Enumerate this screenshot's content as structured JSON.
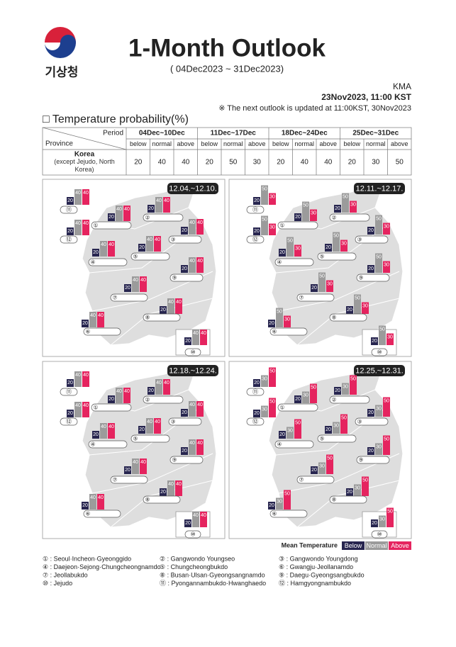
{
  "header": {
    "logo_text": "기상청",
    "title": "1-Month Outlook",
    "subtitle": "( 04Dec2023 ~ 31Dec2023)",
    "agency": "KMA",
    "issued": "23Nov2023, 11:00 KST",
    "note": "※ The next outlook is updated at 11:00KST, 30Nov2023"
  },
  "section_title": "□ Temperature probability(%)",
  "table": {
    "period_header": "Period",
    "province_header": "Province",
    "periods": [
      "04Dec~10Dec",
      "11Dec~17Dec",
      "18Dec~24Dec",
      "25Dec~31Dec"
    ],
    "columns": [
      "below",
      "normal",
      "above"
    ],
    "row_label": "Korea",
    "row_sublabel": "(except Jejudo, North Korea)",
    "values": [
      [
        20,
        40,
        40
      ],
      [
        20,
        50,
        30
      ],
      [
        20,
        40,
        40
      ],
      [
        20,
        30,
        50
      ]
    ]
  },
  "regions": [
    "①",
    "②",
    "③",
    "④",
    "⑤",
    "⑥",
    "⑦",
    "⑧",
    "⑨",
    "⑩",
    "⑪",
    "⑫"
  ],
  "bar_colors": [
    "#27254f",
    "#9b9b9b",
    "#e5245f"
  ],
  "panels": [
    {
      "period": "12.04.~12.10.",
      "values": [
        [
          20,
          40,
          40
        ],
        [
          20,
          40,
          40
        ],
        [
          20,
          40,
          40
        ],
        [
          20,
          40,
          40
        ],
        [
          20,
          40,
          40
        ],
        [
          20,
          40,
          40
        ],
        [
          20,
          40,
          40
        ],
        [
          20,
          40,
          40
        ],
        [
          20,
          40,
          40
        ],
        [
          20,
          40,
          40
        ],
        [
          20,
          40,
          40
        ],
        [
          20,
          40,
          40
        ]
      ]
    },
    {
      "period": "12.11.~12.17.",
      "values": [
        [
          20,
          50,
          30
        ],
        [
          20,
          50,
          30
        ],
        [
          20,
          50,
          30
        ],
        [
          20,
          50,
          30
        ],
        [
          20,
          50,
          30
        ],
        [
          20,
          50,
          30
        ],
        [
          20,
          50,
          30
        ],
        [
          20,
          50,
          30
        ],
        [
          20,
          50,
          30
        ],
        [
          20,
          50,
          30
        ],
        [
          20,
          50,
          30
        ],
        [
          20,
          50,
          30
        ]
      ]
    },
    {
      "period": "12.18.~12.24.",
      "values": [
        [
          20,
          40,
          40
        ],
        [
          20,
          40,
          40
        ],
        [
          20,
          40,
          40
        ],
        [
          20,
          40,
          40
        ],
        [
          20,
          40,
          40
        ],
        [
          20,
          40,
          40
        ],
        [
          20,
          40,
          40
        ],
        [
          20,
          40,
          40
        ],
        [
          20,
          40,
          40
        ],
        [
          20,
          40,
          40
        ],
        [
          20,
          40,
          40
        ],
        [
          20,
          40,
          40
        ]
      ]
    },
    {
      "period": "12.25.~12.31.",
      "values": [
        [
          20,
          30,
          50
        ],
        [
          20,
          30,
          50
        ],
        [
          20,
          30,
          50
        ],
        [
          20,
          30,
          50
        ],
        [
          20,
          30,
          50
        ],
        [
          20,
          30,
          50
        ],
        [
          20,
          30,
          50
        ],
        [
          20,
          30,
          50
        ],
        [
          20,
          30,
          50
        ],
        [
          20,
          30,
          50
        ],
        [
          20,
          30,
          50
        ],
        [
          20,
          30,
          50
        ]
      ]
    }
  ],
  "legend": {
    "title": "Mean Temperature",
    "labels": [
      "Below",
      "Normal",
      "Above"
    ]
  },
  "footnotes": [
    "① : Seoul·Incheon·Gyeonggido",
    "② : Gangwondo Youngseo",
    "③ : Gangwondo Youngdong",
    "④ : Daejeon·Sejong·Chungcheongnamdo",
    "⑤ : Chungcheongbukdo",
    "⑥ : Gwangju·Jeollanamdo",
    "⑦ : Jeollabukdo",
    "⑧ : Busan·Ulsan·Gyeongsangnamdo",
    "⑨ : Daegu·Gyeongsangbukdo",
    "⑩ : Jejudo",
    "⑪ : Pyongannambukdo·Hwanghaedo",
    "⑫ : Hamgyongnambukdo"
  ]
}
